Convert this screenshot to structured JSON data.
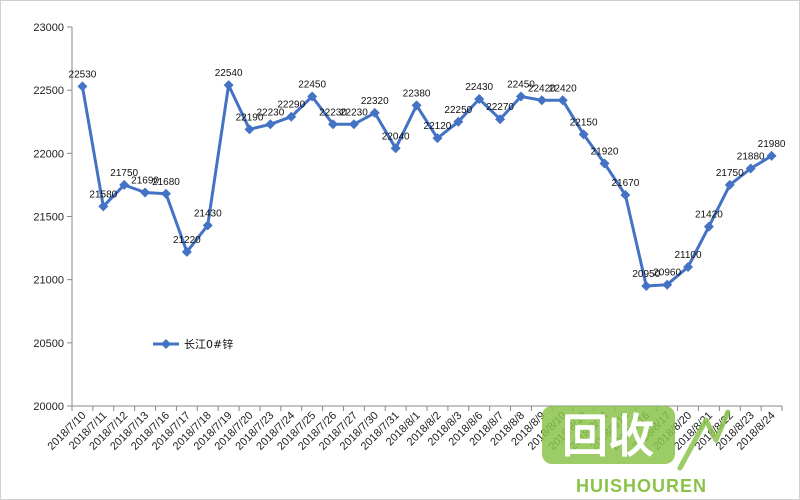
{
  "chart_data": {
    "type": "line",
    "title": "",
    "xlabel": "",
    "ylabel": "",
    "ylim": [
      20000,
      23000
    ],
    "yticks": [
      20000,
      20500,
      21000,
      21500,
      22000,
      22500,
      23000
    ],
    "grid": false,
    "legend_position": "left-middle",
    "series_color": "#4472c4",
    "categories": [
      "2018/7/10",
      "2018/7/11",
      "2018/7/12",
      "2018/7/13",
      "2018/7/16",
      "2018/7/17",
      "2018/7/18",
      "2018/7/19",
      "2018/7/20",
      "2018/7/23",
      "2018/7/24",
      "2018/7/25",
      "2018/7/26",
      "2018/7/27",
      "2018/7/30",
      "2018/7/31",
      "2018/8/1",
      "2018/8/2",
      "2018/8/3",
      "2018/8/6",
      "2018/8/7",
      "2018/8/8",
      "2018/8/9",
      "2018/8/10",
      "2018/8/13",
      "2018/8/14",
      "2018/8/15",
      "2018/8/16",
      "2018/8/17",
      "2018/8/20",
      "2018/8/21",
      "2018/8/22",
      "2018/8/23",
      "2018/8/24"
    ],
    "series": [
      {
        "name": "长江0#锌",
        "values": [
          22530,
          21580,
          21750,
          21690,
          21680,
          21220,
          21430,
          22540,
          22190,
          22230,
          22290,
          22450,
          22230,
          22230,
          22320,
          22040,
          22380,
          22120,
          22250,
          22430,
          22270,
          22450,
          22420,
          22420,
          22150,
          21920,
          21670,
          20950,
          20960,
          21100,
          21420,
          21750,
          21880,
          21980
        ]
      }
    ]
  },
  "watermark": {
    "logo_text": "回收",
    "brand_text": "HUISHOUREN",
    "color": "#8bc34a"
  }
}
